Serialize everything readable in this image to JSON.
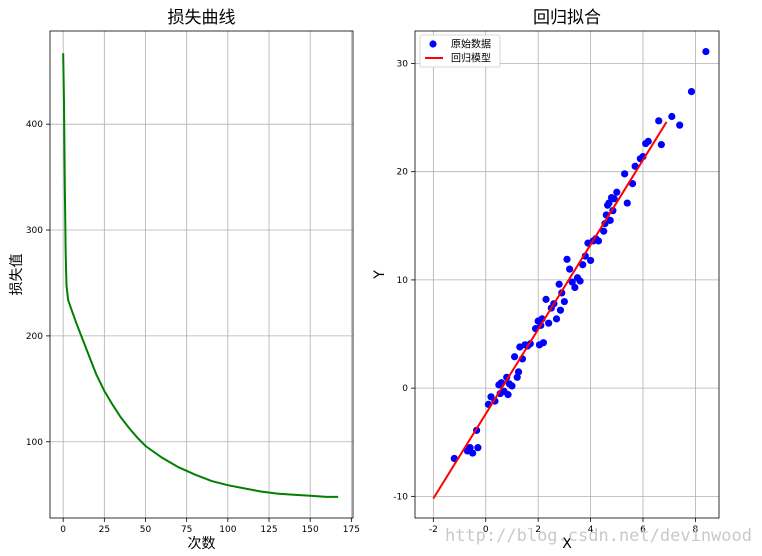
{
  "watermark": "http://blog.csdn.net/devinwood",
  "colors": {
    "loss_line": "#008000",
    "points": "#0000ff",
    "model_line": "#ff0000",
    "grid": "#b0b0b0"
  },
  "chart_data": [
    {
      "type": "line",
      "title": "损失曲线",
      "xlabel": "次数",
      "ylabel": "损失值",
      "xlim": [
        -8,
        176
      ],
      "ylim": [
        28,
        488
      ],
      "xticks": [
        0,
        25,
        50,
        75,
        100,
        125,
        150,
        175
      ],
      "yticks": [
        100,
        200,
        300,
        400
      ],
      "grid": true,
      "series": [
        {
          "x": [
            0,
            0.5,
            1,
            1.5,
            2,
            3,
            5,
            8,
            12,
            16,
            20,
            25,
            30,
            35,
            40,
            45,
            50,
            60,
            70,
            80,
            90,
            100,
            110,
            120,
            130,
            140,
            150,
            160,
            167
          ],
          "values": [
            467,
            420,
            340,
            280,
            248,
            234,
            225,
            212,
            196,
            180,
            164,
            148,
            135,
            123,
            113,
            104,
            96,
            85,
            76,
            69,
            63,
            59,
            56,
            53,
            51,
            50,
            49,
            48,
            48
          ]
        }
      ]
    },
    {
      "type": "scatter",
      "title": "回归拟合",
      "xlabel": "X",
      "ylabel": "Y",
      "xlim": [
        -2.7,
        8.9
      ],
      "ylim": [
        -12,
        33
      ],
      "xticks": [
        -2,
        0,
        2,
        4,
        6,
        8
      ],
      "yticks": [
        -10,
        0,
        10,
        20,
        30
      ],
      "grid": true,
      "legend_position": "top-left",
      "legend": [
        "原始数据",
        "回归模型"
      ],
      "series": [
        {
          "name": "原始数据",
          "x": [
            -1.2,
            -0.7,
            -0.6,
            -0.5,
            -0.3,
            -0.35,
            0.1,
            0.2,
            0.35,
            0.5,
            0.55,
            0.6,
            0.7,
            0.8,
            0.85,
            0.9,
            1.0,
            1.1,
            1.2,
            1.25,
            1.3,
            1.4,
            1.5,
            1.6,
            1.7,
            1.9,
            2.0,
            2.05,
            2.1,
            2.15,
            2.2,
            2.3,
            2.4,
            2.5,
            2.6,
            2.7,
            2.8,
            2.85,
            2.9,
            3.0,
            3.1,
            3.2,
            3.3,
            3.4,
            3.5,
            3.6,
            3.7,
            3.8,
            3.9,
            4.0,
            4.1,
            4.2,
            4.3,
            4.5,
            4.55,
            4.6,
            4.65,
            4.7,
            4.75,
            4.8,
            4.85,
            4.9,
            5.0,
            5.3,
            5.4,
            5.6,
            5.7,
            5.9,
            6.0,
            6.1,
            6.2,
            6.6,
            6.7,
            7.1,
            7.4,
            7.85,
            8.4
          ],
          "values": [
            -6.5,
            -5.8,
            -5.5,
            -6.0,
            -5.5,
            -3.9,
            -1.5,
            -0.8,
            -1.2,
            0.3,
            -0.5,
            0.5,
            -0.3,
            1.0,
            -0.6,
            0.4,
            0.2,
            2.9,
            1.0,
            1.5,
            3.8,
            2.7,
            4.0,
            3.9,
            4.1,
            5.5,
            6.2,
            4.0,
            5.8,
            6.4,
            4.2,
            8.2,
            6.0,
            7.4,
            7.8,
            6.4,
            9.6,
            7.2,
            8.8,
            8.0,
            11.9,
            11.0,
            9.8,
            9.3,
            10.2,
            9.9,
            11.4,
            12.2,
            13.4,
            11.8,
            13.6,
            13.8,
            13.6,
            14.5,
            15.2,
            16.0,
            16.9,
            17.1,
            15.5,
            17.6,
            16.4,
            17.5,
            18.1,
            19.8,
            17.1,
            18.9,
            20.5,
            21.2,
            21.4,
            22.6,
            22.8,
            24.7,
            22.5,
            25.1,
            24.3,
            27.4,
            31.1
          ]
        },
        {
          "name": "回归模型",
          "x": [
            -2,
            6.9
          ],
          "values": [
            -10.2,
            24.6
          ]
        }
      ]
    }
  ]
}
